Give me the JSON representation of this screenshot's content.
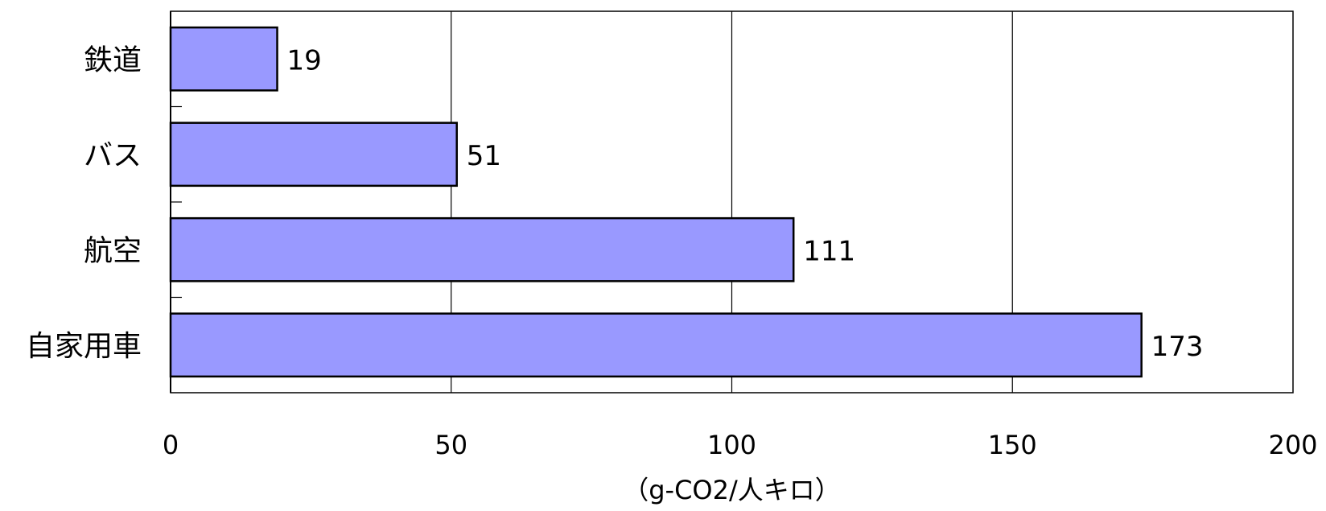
{
  "chart_data": {
    "type": "bar",
    "orientation": "horizontal",
    "categories": [
      "鉄道",
      "バス",
      "航空",
      "自家用車"
    ],
    "values": [
      19,
      51,
      111,
      173
    ],
    "xlabel": "（g-CO2/人キロ）",
    "ylabel": "",
    "title": "",
    "xlim": [
      0,
      200
    ],
    "xticks": [
      0,
      50,
      100,
      150,
      200
    ],
    "grid": "vertical",
    "bar_color": "#9999ff",
    "bar_stroke": "#000000",
    "data_labels": true
  }
}
